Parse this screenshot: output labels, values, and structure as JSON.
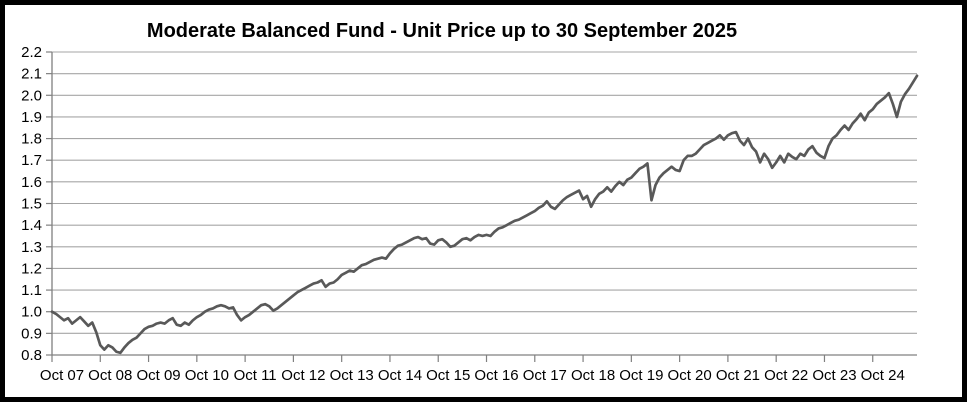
{
  "chart_data": {
    "type": "line",
    "title": "Moderate Balanced Fund - Unit Price up to 30 September 2025",
    "xlabel": "",
    "ylabel": "",
    "ylim": [
      0.8,
      2.2
    ],
    "y_ticks": [
      0.8,
      0.9,
      1.0,
      1.1,
      1.2,
      1.3,
      1.4,
      1.5,
      1.6,
      1.7,
      1.8,
      1.9,
      2.0,
      2.1,
      2.2
    ],
    "y_tick_format": "one-decimal",
    "x_tick_labels": [
      "Oct 07",
      "Oct 08",
      "Oct 09",
      "Oct 10",
      "Oct 11",
      "Oct 12",
      "Oct 13",
      "Oct 14",
      "Oct 15",
      "Oct 16",
      "Oct 17",
      "Oct 18",
      "Oct 19",
      "Oct 20",
      "Oct 21",
      "Oct 22",
      "Oct 23",
      "Oct 24"
    ],
    "grid": "horizontal",
    "legend": "none",
    "series": [
      {
        "name": "Unit Price",
        "frequency": "monthly",
        "start_month": "2007-10",
        "end_month": "2025-09",
        "values": [
          1.0,
          0.99,
          0.975,
          0.96,
          0.97,
          0.945,
          0.96,
          0.975,
          0.955,
          0.935,
          0.95,
          0.905,
          0.845,
          0.825,
          0.845,
          0.835,
          0.815,
          0.81,
          0.835,
          0.855,
          0.87,
          0.88,
          0.9,
          0.92,
          0.93,
          0.935,
          0.945,
          0.95,
          0.945,
          0.96,
          0.97,
          0.94,
          0.935,
          0.95,
          0.94,
          0.96,
          0.975,
          0.985,
          1.0,
          1.01,
          1.015,
          1.025,
          1.03,
          1.025,
          1.015,
          1.02,
          0.985,
          0.96,
          0.975,
          0.985,
          1.0,
          1.015,
          1.03,
          1.035,
          1.025,
          1.005,
          1.015,
          1.03,
          1.045,
          1.06,
          1.075,
          1.09,
          1.1,
          1.11,
          1.12,
          1.13,
          1.135,
          1.145,
          1.115,
          1.13,
          1.135,
          1.15,
          1.17,
          1.18,
          1.19,
          1.185,
          1.2,
          1.215,
          1.22,
          1.23,
          1.24,
          1.245,
          1.25,
          1.245,
          1.27,
          1.29,
          1.305,
          1.31,
          1.32,
          1.33,
          1.34,
          1.345,
          1.335,
          1.34,
          1.315,
          1.31,
          1.33,
          1.335,
          1.32,
          1.3,
          1.305,
          1.32,
          1.335,
          1.34,
          1.33,
          1.345,
          1.355,
          1.35,
          1.355,
          1.35,
          1.37,
          1.385,
          1.39,
          1.4,
          1.41,
          1.42,
          1.425,
          1.435,
          1.445,
          1.455,
          1.465,
          1.48,
          1.49,
          1.51,
          1.485,
          1.475,
          1.495,
          1.515,
          1.53,
          1.54,
          1.55,
          1.56,
          1.52,
          1.535,
          1.485,
          1.52,
          1.545,
          1.555,
          1.575,
          1.555,
          1.58,
          1.6,
          1.585,
          1.61,
          1.62,
          1.64,
          1.66,
          1.67,
          1.685,
          1.515,
          1.585,
          1.62,
          1.64,
          1.655,
          1.67,
          1.655,
          1.65,
          1.7,
          1.72,
          1.72,
          1.73,
          1.75,
          1.77,
          1.78,
          1.79,
          1.8,
          1.815,
          1.795,
          1.815,
          1.825,
          1.83,
          1.79,
          1.77,
          1.8,
          1.76,
          1.74,
          1.69,
          1.73,
          1.705,
          1.665,
          1.69,
          1.72,
          1.69,
          1.73,
          1.715,
          1.705,
          1.73,
          1.72,
          1.75,
          1.765,
          1.735,
          1.72,
          1.71,
          1.765,
          1.8,
          1.815,
          1.84,
          1.86,
          1.84,
          1.87,
          1.89,
          1.915,
          1.885,
          1.92,
          1.935,
          1.96,
          1.975,
          1.99,
          2.01,
          1.96,
          1.9,
          1.97,
          2.005,
          2.03,
          2.06,
          2.09
        ]
      }
    ],
    "colors": {
      "line": "#595959",
      "grid": "#a6a6a6",
      "axis": "#808080",
      "text": "#000000",
      "background": "#ffffff",
      "border": "#000000"
    }
  }
}
